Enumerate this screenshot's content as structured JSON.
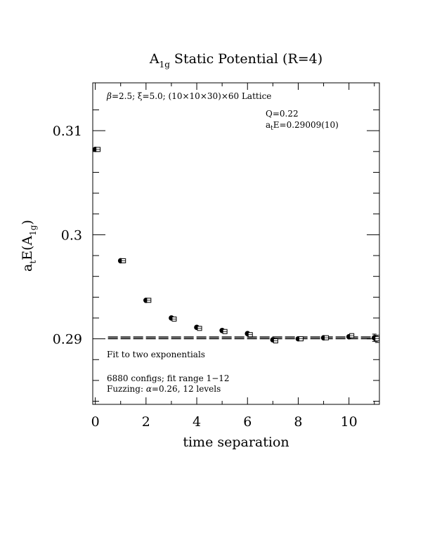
{
  "chart_data": {
    "type": "scatter",
    "title_main": "A",
    "title_sub": "1g",
    "title_rest": " Static Potential (R=4)",
    "xlabel": "time separation",
    "ylabel_a": "a",
    "ylabel_t": "t",
    "ylabel_E": "E(A",
    "ylabel_sub": "1g",
    "ylabel_close": ")",
    "xlim": [
      -0.1,
      11.2
    ],
    "ylim": [
      0.2837,
      0.3146
    ],
    "x_ticks": [
      0,
      2,
      4,
      6,
      8,
      10
    ],
    "x_tick_labels": [
      "0",
      "2",
      "4",
      "6",
      "8",
      "10"
    ],
    "y_ticks": [
      0.29,
      0.3,
      0.31
    ],
    "y_tick_labels": [
      "0.29",
      "0.3",
      "0.31"
    ],
    "series": [
      {
        "marker": "filled-circle",
        "x": [
          0,
          1,
          2,
          3,
          4,
          5,
          6,
          7,
          8,
          9,
          10,
          11
        ],
        "y": [
          0.3082,
          0.2975,
          0.2937,
          0.292,
          0.2911,
          0.2908,
          0.2905,
          0.2899,
          0.29,
          0.2901,
          0.2902,
          0.2901
        ],
        "err": [
          2e-05,
          3e-05,
          3e-05,
          3e-05,
          4e-05,
          4e-05,
          5e-05,
          6e-05,
          7e-05,
          9e-05,
          0.00012,
          0.00035
        ]
      },
      {
        "marker": "open-square",
        "x": [
          0,
          1,
          2,
          3,
          4,
          5,
          6,
          7,
          8,
          9,
          10,
          11
        ],
        "y": [
          0.3082,
          0.2975,
          0.2937,
          0.2919,
          0.291,
          0.2907,
          0.2904,
          0.2898,
          0.29,
          0.2901,
          0.2903,
          0.29
        ],
        "err": [
          2e-05,
          3e-05,
          3e-05,
          3e-05,
          4e-05,
          4e-05,
          5e-05,
          6e-05,
          7e-05,
          9e-05,
          0.00012,
          0.00035
        ]
      }
    ],
    "fit": {
      "value": 0.29009,
      "error": 0.0001,
      "x_range": [
        0.5,
        11.2
      ]
    },
    "annotations": {
      "lattice_beta": "β",
      "lattice_rest": "=2.5; ξ=5.0; (10×10×30)×60 Lattice",
      "q_value": "Q=0.22",
      "energy_a": "a",
      "energy_t": "t",
      "energy_rest": "E=0.29009(10)",
      "fit_type": "Fit to two exponentials",
      "configs": "6880 configs; fit range 1−12",
      "fuzzing_a": "Fuzzing: ",
      "fuzzing_alpha": "α",
      "fuzzing_b": "=0.26, 12 levels"
    }
  }
}
